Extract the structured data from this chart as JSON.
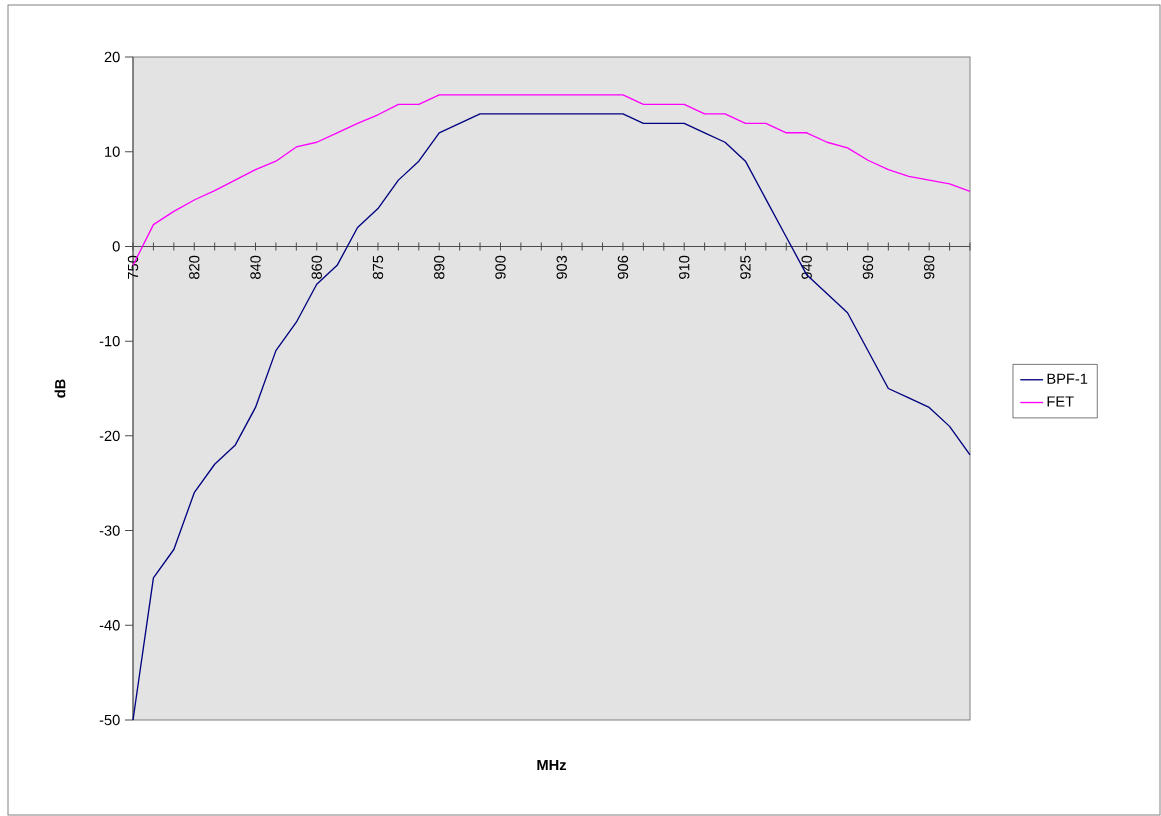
{
  "chart_data": {
    "type": "line",
    "xlabel": "MHz",
    "ylabel": "dB",
    "categories": [
      "750",
      null,
      null,
      "820",
      null,
      null,
      "840",
      null,
      null,
      "860",
      null,
      null,
      "875",
      null,
      null,
      "890",
      null,
      null,
      "900",
      null,
      null,
      "903",
      null,
      null,
      "906",
      null,
      null,
      "910",
      null,
      null,
      "925",
      null,
      null,
      "940",
      null,
      null,
      "960",
      null,
      null,
      "980",
      null,
      null
    ],
    "series": [
      {
        "name": "BPF-1",
        "color": "#000080",
        "values": [
          -50,
          -35,
          -32,
          -26,
          -23,
          -21,
          -17,
          -11,
          -8,
          -4,
          -2,
          2,
          4,
          7,
          9,
          12,
          13,
          14,
          14,
          14,
          14,
          14,
          14,
          14,
          14,
          13,
          13,
          13,
          12,
          11,
          9,
          5,
          1,
          -3,
          -5,
          -7,
          -11,
          -15,
          -16,
          -17,
          -19,
          -22
        ]
      },
      {
        "name": "FET",
        "color": "#ff00ff",
        "values": [
          -2,
          2.3,
          3.7,
          4.9,
          5.9,
          7,
          8.1,
          9,
          10.5,
          11,
          12,
          13,
          13.9,
          15,
          15,
          16,
          16,
          16,
          16,
          16,
          16,
          16,
          16,
          16,
          16,
          15,
          15,
          15,
          14,
          14,
          13,
          13,
          12,
          12,
          11,
          10.4,
          9.1,
          8.1,
          7.4,
          7,
          6.6,
          5.8
        ]
      }
    ],
    "ylim": [
      -50,
      20
    ],
    "yticks": [
      -50,
      -40,
      -30,
      -20,
      -10,
      0,
      10,
      20
    ],
    "legend": "right"
  }
}
